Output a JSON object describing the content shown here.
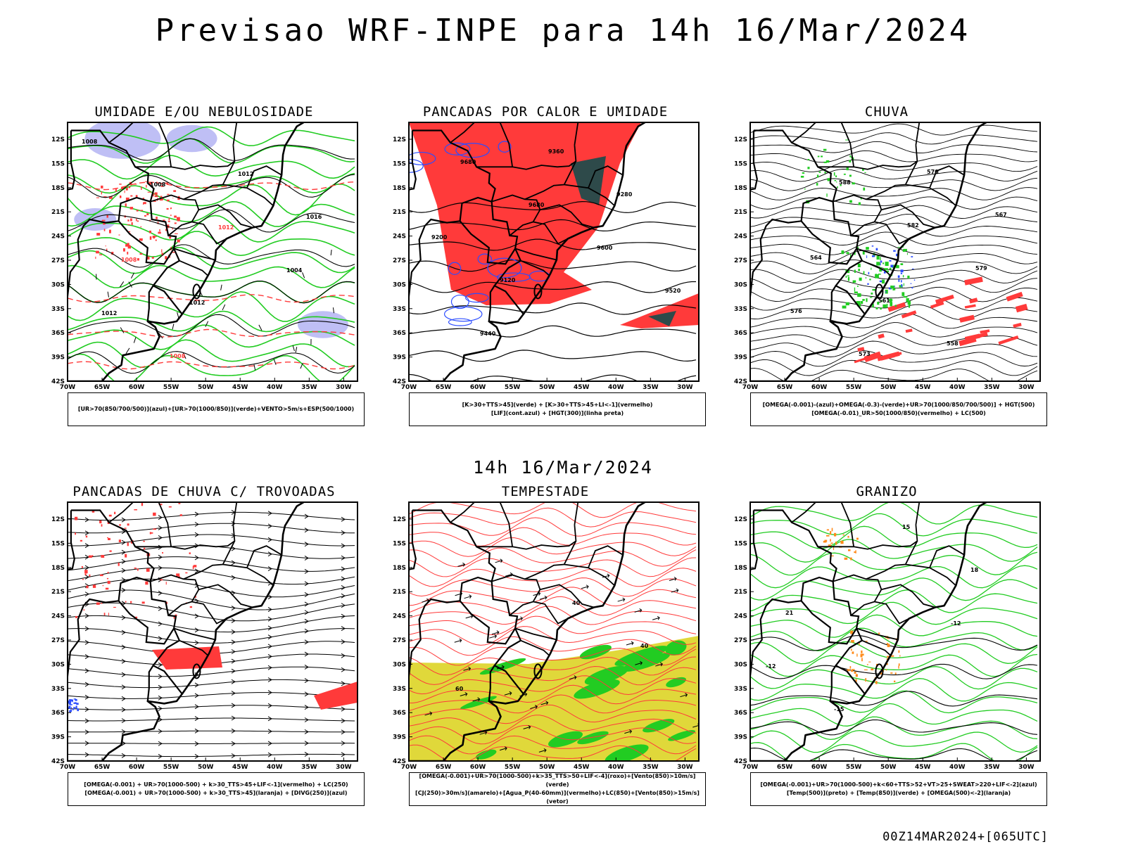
{
  "header": {
    "title": "Previsao WRF-INPE  para 14h 16/Mar/2024",
    "subtitle": "14h 16/Mar/2024",
    "footer": "00Z14MAR2024+[065UTC]"
  },
  "axes": {
    "lat_ticks": [
      "12S",
      "15S",
      "18S",
      "21S",
      "24S",
      "27S",
      "30S",
      "33S",
      "36S",
      "39S",
      "42S"
    ],
    "lon_ticks": [
      "70W",
      "65W",
      "60W",
      "55W",
      "50W",
      "45W",
      "40W",
      "35W",
      "30W"
    ]
  },
  "colors": {
    "green": "#22cc22",
    "red": "#ff3a3a",
    "blue": "#2b4cff",
    "lavender": "#b8b8f4",
    "yellow": "#e0d83a",
    "darkgray": "#2e4a4a",
    "orange": "#ff8a1a"
  },
  "panels": [
    {
      "title": "UMIDADE E/OU NEBULOSIDADE",
      "caption": [
        "[UR>70(850/700/500)](azul)+[UR>70(1000/850)](verde)+VENTO>5m/s+ESP(500/1000)"
      ],
      "contour_labels": [
        "1008",
        "1008",
        "1012",
        "1004",
        "1012",
        "1008",
        "1012",
        "1016",
        "1008",
        "1012"
      ]
    },
    {
      "title": "PANCADAS POR CALOR E UMIDADE",
      "caption": [
        "[K>30+TTS>45](verde) + [K>30+TTS>45+LI<-1](vermelho)",
        "[LIF](cont.azul) + [HGT(300)](linha preta)"
      ],
      "contour_labels": [
        "9680",
        "9680",
        "9600",
        "9520",
        "9440",
        "9360",
        "9280",
        "9200",
        "9120"
      ]
    },
    {
      "title": "CHUVA",
      "caption": [
        "[OMEGA(-0.001)-(azul)+OMEGA(-0.3)-(verde)+UR>70(1000/850/700/500)] + HGT(500)",
        "[OMEGA(-0.01)_UR>50(1000/850)(vermelho) + LC(500)"
      ],
      "contour_labels": [
        "588",
        "582",
        "579",
        "576",
        "573",
        "570",
        "567",
        "564",
        "561",
        "558"
      ]
    },
    {
      "title": "PANCADAS DE CHUVA C/ TROVOADAS",
      "caption": [
        "[OMEGA(-0.001) + UR>70(1000-500) + k>30_TTS>45+LIF<-1](vermelho) + LC(250)",
        "[OMEGA(-0.001) + UR>70(1000-500) + k>30_TTS>45](laranja) + [DIVG(250)](azul)"
      ],
      "contour_labels": []
    },
    {
      "title": "TEMPESTADE",
      "caption": [
        "[OMEGA(-0.001)+UR>70(1000-500)+k>35_TTS>50+LIF<-4](roxo)+[Vento(850)>10m/s](verde)",
        "[CJ(250)>30m/s](amarelo)+[Agua_P(40-60mm)](vermelho)+LC(850)+[Vento(850)>15m/s](vetor)"
      ],
      "contour_labels": [
        "40",
        "40",
        "60"
      ]
    },
    {
      "title": "GRANIZO",
      "caption": [
        "[OMEGA(-0.001)+UR>70(1000-500)+k<60+TTS>52+VT>25+SWEAT>220+LIF<-2](azul)",
        "[Temp(500)](preto) + [Temp(850)](verde) + [OMEGA(500)<-2](laranja)"
      ],
      "contour_labels": [
        "-12",
        "-12",
        "-15",
        "15",
        "18",
        "21"
      ]
    }
  ]
}
